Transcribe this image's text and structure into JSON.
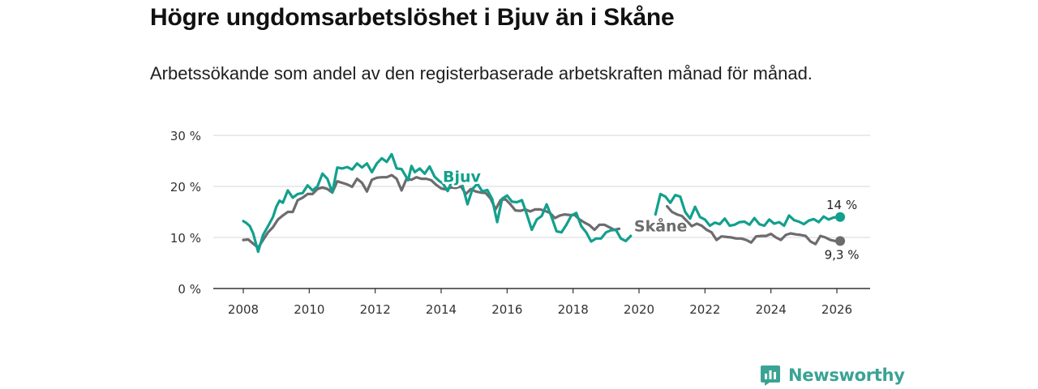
{
  "title": "Högre ungdomsarbetslöshet i Bjuv än i Skåne",
  "subtitle": "Arbetssökande som andel av den registerbaserade arbetskraften månad för månad.",
  "brand": {
    "name": "Newsworthy",
    "color": "#3aa393"
  },
  "chart_data": {
    "type": "line",
    "title": "Högre ungdomsarbetslöshet i Bjuv än i Skåne",
    "subtitle": "Arbetssökande som andel av den registerbaserade arbetskraften månad för månad.",
    "xlabel": "",
    "ylabel": "",
    "xlim": [
      2008,
      2026.5
    ],
    "ylim": [
      0,
      30
    ],
    "grid": true,
    "x_ticks": [
      2008,
      2010,
      2012,
      2014,
      2016,
      2018,
      2020,
      2022,
      2024,
      2026
    ],
    "x_tick_labels": [
      "2008",
      "2010",
      "2012",
      "2014",
      "2016",
      "2018",
      "2020",
      "2022",
      "2024",
      "2026"
    ],
    "y_ticks": [
      0,
      10,
      20,
      30
    ],
    "y_tick_labels": [
      "0 %",
      "10 %",
      "20 %",
      "30 %"
    ],
    "series": [
      {
        "name": "Bjuv",
        "color": "#12a08c",
        "end_label": "14 %",
        "points": [
          [
            2008.0,
            13.2
          ],
          [
            2008.1,
            12.8
          ],
          [
            2008.2,
            12.2
          ],
          [
            2008.3,
            10.8
          ],
          [
            2008.45,
            7.2
          ],
          [
            2008.6,
            10.5
          ],
          [
            2008.75,
            12.2
          ],
          [
            2008.9,
            14.0
          ],
          [
            2009.0,
            16.0
          ],
          [
            2009.1,
            17.2
          ],
          [
            2009.2,
            16.8
          ],
          [
            2009.35,
            19.2
          ],
          [
            2009.5,
            17.8
          ],
          [
            2009.65,
            18.5
          ],
          [
            2009.8,
            18.7
          ],
          [
            2009.95,
            20.2
          ],
          [
            2010.1,
            19.2
          ],
          [
            2010.25,
            20.0
          ],
          [
            2010.4,
            22.5
          ],
          [
            2010.55,
            21.5
          ],
          [
            2010.7,
            18.8
          ],
          [
            2010.85,
            23.7
          ],
          [
            2011.0,
            23.5
          ],
          [
            2011.15,
            23.8
          ],
          [
            2011.3,
            23.3
          ],
          [
            2011.45,
            24.5
          ],
          [
            2011.6,
            23.7
          ],
          [
            2011.75,
            24.5
          ],
          [
            2011.9,
            22.8
          ],
          [
            2012.05,
            24.5
          ],
          [
            2012.2,
            25.5
          ],
          [
            2012.35,
            24.8
          ],
          [
            2012.5,
            26.3
          ],
          [
            2012.65,
            23.5
          ],
          [
            2012.8,
            23.4
          ],
          [
            2013.0,
            21.2
          ],
          [
            2013.1,
            24.0
          ],
          [
            2013.2,
            22.8
          ],
          [
            2013.35,
            23.5
          ],
          [
            2013.5,
            22.5
          ],
          [
            2013.65,
            23.9
          ],
          [
            2013.8,
            21.9
          ],
          [
            2013.95,
            21.0
          ],
          [
            2014.05,
            20.6
          ],
          [
            2014.2,
            19.1
          ],
          [
            2014.35,
            21.4
          ]
        ],
        "segments": [
          [
            [
              2014.65,
              20.1
            ],
            [
              2014.8,
              16.5
            ],
            [
              2014.95,
              19.5
            ],
            [
              2015.1,
              20.5
            ],
            [
              2015.25,
              19.0
            ],
            [
              2015.4,
              19.3
            ],
            [
              2015.55,
              17.5
            ],
            [
              2015.7,
              13.0
            ],
            [
              2015.85,
              17.6
            ],
            [
              2016.0,
              18.2
            ],
            [
              2016.15,
              17.0
            ],
            [
              2016.3,
              16.9
            ],
            [
              2016.45,
              17.3
            ],
            [
              2016.6,
              14.5
            ],
            [
              2016.75,
              11.5
            ],
            [
              2016.9,
              13.5
            ],
            [
              2017.05,
              14.2
            ],
            [
              2017.2,
              16.5
            ],
            [
              2017.35,
              14.0
            ],
            [
              2017.5,
              11.2
            ],
            [
              2017.65,
              11.0
            ],
            [
              2017.8,
              12.5
            ],
            [
              2017.95,
              14.3
            ],
            [
              2018.1,
              14.8
            ],
            [
              2018.25,
              12.2
            ],
            [
              2018.4,
              11.0
            ],
            [
              2018.55,
              9.2
            ],
            [
              2018.7,
              9.8
            ],
            [
              2018.85,
              9.8
            ],
            [
              2019.0,
              11.0
            ],
            [
              2019.15,
              11.4
            ],
            [
              2019.3,
              11.5
            ],
            [
              2019.45,
              9.8
            ],
            [
              2019.6,
              9.3
            ],
            [
              2019.75,
              10.3
            ]
          ],
          [
            [
              2020.5,
              14.5
            ],
            [
              2020.65,
              18.5
            ],
            [
              2020.8,
              18.0
            ],
            [
              2020.95,
              16.8
            ],
            [
              2021.1,
              18.3
            ],
            [
              2021.25,
              18.0
            ],
            [
              2021.4,
              15.0
            ],
            [
              2021.55,
              13.7
            ],
            [
              2021.7,
              16.0
            ],
            [
              2021.85,
              14.0
            ],
            [
              2022.0,
              13.5
            ],
            [
              2022.15,
              12.3
            ],
            [
              2022.3,
              12.9
            ],
            [
              2022.45,
              12.6
            ],
            [
              2022.6,
              13.7
            ],
            [
              2022.75,
              12.3
            ],
            [
              2022.9,
              12.5
            ],
            [
              2023.05,
              13.0
            ],
            [
              2023.2,
              13.1
            ],
            [
              2023.35,
              12.5
            ],
            [
              2023.5,
              13.8
            ],
            [
              2023.65,
              12.6
            ],
            [
              2023.8,
              12.3
            ],
            [
              2023.95,
              13.5
            ],
            [
              2024.1,
              12.7
            ],
            [
              2024.25,
              13.0
            ],
            [
              2024.4,
              12.3
            ],
            [
              2024.55,
              14.3
            ],
            [
              2024.7,
              13.4
            ],
            [
              2024.85,
              13.1
            ],
            [
              2025.0,
              12.6
            ],
            [
              2025.15,
              13.3
            ],
            [
              2025.3,
              13.6
            ],
            [
              2025.45,
              13.0
            ],
            [
              2025.6,
              14.1
            ],
            [
              2025.75,
              13.5
            ],
            [
              2025.9,
              13.9
            ],
            [
              2026.1,
              14.0
            ]
          ]
        ],
        "label_text": "Bjuv",
        "label_at": [
          2014.05,
          20.9
        ]
      },
      {
        "name": "Skåne",
        "color": "#6e6b6f",
        "end_label": "9,3 %",
        "segments": [
          [
            [
              2008.0,
              9.5
            ],
            [
              2008.15,
              9.6
            ],
            [
              2008.3,
              8.8
            ],
            [
              2008.45,
              8.0
            ],
            [
              2008.6,
              9.5
            ],
            [
              2008.75,
              11.0
            ],
            [
              2008.9,
              12.0
            ],
            [
              2009.05,
              13.5
            ],
            [
              2009.2,
              14.3
            ],
            [
              2009.35,
              15.0
            ],
            [
              2009.5,
              15.0
            ],
            [
              2009.65,
              17.3
            ],
            [
              2009.8,
              17.8
            ],
            [
              2009.95,
              18.5
            ],
            [
              2010.1,
              18.5
            ],
            [
              2010.25,
              19.5
            ],
            [
              2010.4,
              19.8
            ],
            [
              2010.55,
              19.5
            ],
            [
              2010.7,
              18.8
            ],
            [
              2010.85,
              21.0
            ],
            [
              2011.0,
              20.7
            ],
            [
              2011.15,
              20.4
            ],
            [
              2011.3,
              19.9
            ],
            [
              2011.45,
              21.5
            ],
            [
              2011.6,
              20.7
            ],
            [
              2011.75,
              19.0
            ],
            [
              2011.9,
              21.3
            ],
            [
              2012.05,
              21.7
            ],
            [
              2012.2,
              21.8
            ],
            [
              2012.35,
              21.8
            ],
            [
              2012.5,
              22.2
            ],
            [
              2012.65,
              21.5
            ],
            [
              2012.8,
              19.2
            ],
            [
              2012.95,
              21.5
            ],
            [
              2013.1,
              21.3
            ],
            [
              2013.25,
              21.8
            ],
            [
              2013.4,
              21.5
            ],
            [
              2013.55,
              21.5
            ],
            [
              2013.7,
              21.2
            ],
            [
              2013.85,
              20.3
            ],
            [
              2014.0,
              19.6
            ],
            [
              2014.15,
              19.4
            ],
            [
              2014.3,
              19.8
            ],
            [
              2014.45,
              19.7
            ],
            [
              2014.6,
              20.0
            ],
            [
              2014.75,
              18.5
            ],
            [
              2014.9,
              19.5
            ],
            [
              2015.05,
              19.0
            ],
            [
              2015.2,
              18.8
            ],
            [
              2015.35,
              18.7
            ],
            [
              2015.5,
              17.6
            ],
            [
              2015.65,
              15.5
            ],
            [
              2015.8,
              17.3
            ],
            [
              2015.95,
              17.5
            ],
            [
              2016.1,
              16.5
            ],
            [
              2016.25,
              15.3
            ],
            [
              2016.4,
              15.2
            ],
            [
              2016.55,
              15.5
            ],
            [
              2016.7,
              15.1
            ],
            [
              2016.85,
              15.5
            ],
            [
              2017.0,
              15.5
            ],
            [
              2017.15,
              15.2
            ],
            [
              2017.3,
              14.8
            ],
            [
              2017.45,
              13.8
            ],
            [
              2017.6,
              14.3
            ],
            [
              2017.75,
              14.5
            ],
            [
              2017.9,
              14.4
            ],
            [
              2018.05,
              14.4
            ],
            [
              2018.2,
              13.5
            ],
            [
              2018.35,
              12.9
            ],
            [
              2018.5,
              12.4
            ],
            [
              2018.65,
              11.5
            ],
            [
              2018.8,
              12.5
            ],
            [
              2018.95,
              12.5
            ],
            [
              2019.1,
              12.0
            ],
            [
              2019.25,
              11.5
            ],
            [
              2019.4,
              11.7
            ]
          ],
          [
            [
              2020.85,
              16.1
            ],
            [
              2021.0,
              15.0
            ],
            [
              2021.15,
              14.5
            ],
            [
              2021.3,
              14.2
            ],
            [
              2021.45,
              13.2
            ],
            [
              2021.6,
              12.2
            ],
            [
              2021.75,
              12.7
            ],
            [
              2021.9,
              12.3
            ],
            [
              2022.05,
              11.5
            ],
            [
              2022.2,
              11.0
            ],
            [
              2022.35,
              9.5
            ],
            [
              2022.5,
              10.2
            ],
            [
              2022.65,
              10.1
            ],
            [
              2022.8,
              10.0
            ],
            [
              2022.95,
              9.8
            ],
            [
              2023.1,
              9.8
            ],
            [
              2023.25,
              9.5
            ],
            [
              2023.4,
              9.0
            ],
            [
              2023.55,
              10.2
            ],
            [
              2023.7,
              10.3
            ],
            [
              2023.85,
              10.3
            ],
            [
              2024.0,
              10.7
            ],
            [
              2024.15,
              10.0
            ],
            [
              2024.3,
              9.5
            ],
            [
              2024.45,
              10.5
            ],
            [
              2024.6,
              10.8
            ],
            [
              2024.75,
              10.6
            ],
            [
              2024.9,
              10.5
            ],
            [
              2025.05,
              10.3
            ],
            [
              2025.2,
              9.2
            ],
            [
              2025.35,
              8.7
            ],
            [
              2025.5,
              10.3
            ],
            [
              2025.65,
              10.0
            ],
            [
              2025.8,
              9.5
            ],
            [
              2025.95,
              9.3
            ],
            [
              2026.1,
              9.3
            ]
          ]
        ],
        "label_text": "Skåne",
        "label_at": [
          2019.85,
          11.2
        ]
      }
    ]
  }
}
